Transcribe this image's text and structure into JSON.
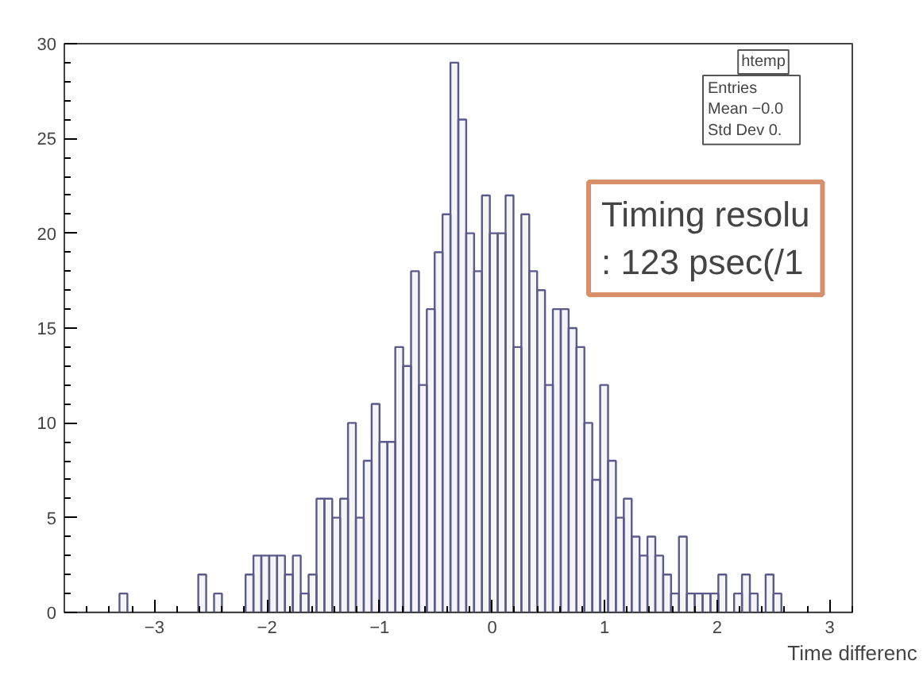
{
  "chart_data": {
    "type": "histogram",
    "xlabel": "Time differenc",
    "bins": [
      -3.8,
      -3.73,
      -3.66,
      -3.59,
      -3.52,
      -3.45,
      -3.38,
      -3.31,
      -3.24,
      -3.17,
      -3.1,
      -3.03,
      -2.96,
      -2.89,
      -2.82,
      -2.75,
      -2.68,
      -2.61,
      -2.54,
      -2.47,
      -2.4,
      -2.33,
      -2.26,
      -2.19,
      -2.12,
      -2.05,
      -1.98,
      -1.91,
      -1.84,
      -1.77,
      -1.7,
      -1.63,
      -1.56,
      -1.49,
      -1.42,
      -1.35,
      -1.28,
      -1.21,
      -1.14,
      -1.07,
      -1.0,
      -0.93,
      -0.86,
      -0.79,
      -0.72,
      -0.65,
      -0.58,
      -0.51,
      -0.44,
      -0.37,
      -0.3,
      -0.23,
      -0.16,
      -0.09,
      -0.02,
      0.05,
      0.12,
      0.19,
      0.26,
      0.33,
      0.4,
      0.47,
      0.54,
      0.61,
      0.68,
      0.75,
      0.82,
      0.89,
      0.96,
      1.03,
      1.1,
      1.17,
      1.24,
      1.31,
      1.38,
      1.45,
      1.52,
      1.59,
      1.66,
      1.73,
      1.8,
      1.87,
      1.94,
      2.01,
      2.08,
      2.15,
      2.22,
      2.29,
      2.36,
      2.43,
      2.5,
      2.57,
      2.64,
      2.71,
      2.78,
      2.85,
      2.92,
      2.99,
      3.06,
      3.13,
      3.2
    ],
    "values": [
      0,
      0,
      0,
      0,
      0,
      0,
      0,
      1,
      0,
      0,
      0,
      0,
      0,
      0,
      0,
      0,
      0,
      2,
      0,
      1,
      0,
      0,
      0,
      2,
      3,
      3,
      3,
      3,
      2,
      3,
      1,
      2,
      6,
      6,
      5,
      6,
      10,
      5,
      8,
      11,
      9,
      9,
      14,
      13,
      18,
      12,
      16,
      19,
      21,
      29,
      26,
      20,
      18,
      22,
      20,
      20,
      22,
      14,
      21,
      18,
      17,
      12,
      16,
      16,
      15,
      14,
      10,
      7,
      12,
      8,
      5,
      6,
      4,
      3,
      4,
      3,
      2,
      1,
      4,
      1,
      1,
      1,
      1,
      2,
      0,
      1,
      2,
      1,
      0,
      2,
      1,
      0,
      0,
      0,
      0,
      0,
      0,
      0,
      0,
      0
    ],
    "color": "#5a5a8c",
    "xlim": [
      -3.8,
      3.2
    ],
    "ylim": [
      0,
      30
    ],
    "xticks": [
      -3,
      -2,
      -1,
      0,
      1,
      2,
      3
    ],
    "yticks": [
      0,
      5,
      10,
      15,
      20,
      25,
      30
    ],
    "grid": false,
    "annotations": [
      "htemp",
      "Entries",
      "Mean   −0.0",
      "Std Dev    0.",
      "Timing resolu",
      ": 123 psec(/1"
    ]
  }
}
